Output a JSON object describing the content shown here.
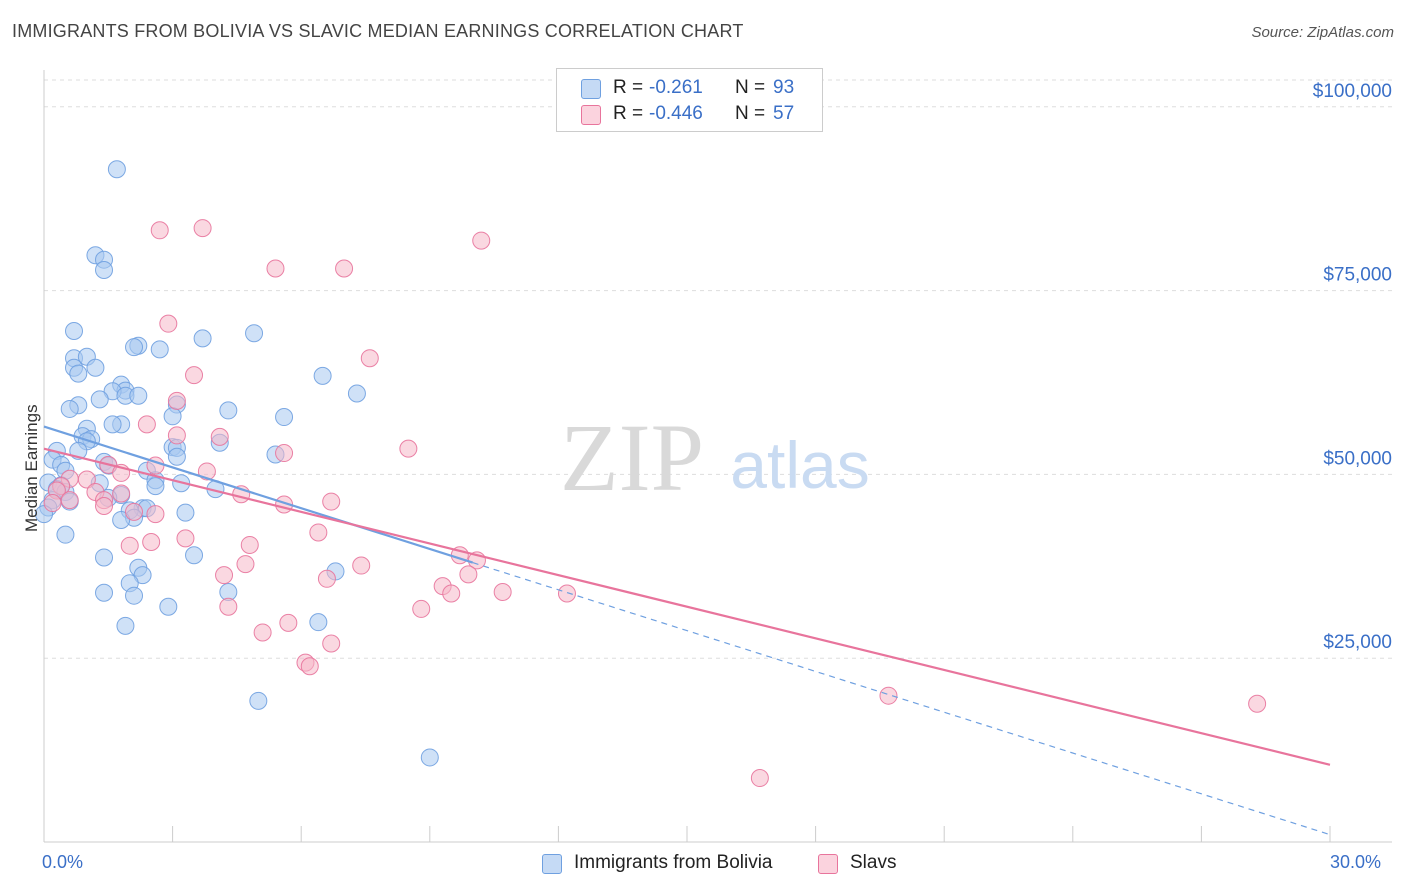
{
  "title": "IMMIGRANTS FROM BOLIVIA VS SLAVIC MEDIAN EARNINGS CORRELATION CHART",
  "source": "Source: ZipAtlas.com",
  "watermark": {
    "zip": "ZIP",
    "atlas": "atlas"
  },
  "legend_top": [
    {
      "r_label": "R =",
      "r_value": "-0.261",
      "n_label": "N =",
      "n_value": "93",
      "color": "#a8c8f0"
    },
    {
      "r_label": "R =",
      "r_value": "-0.446",
      "n_label": "N =",
      "n_value": "57",
      "color": "#f5b8c9"
    }
  ],
  "legend_bottom": [
    {
      "label": "Immigrants from Bolivia",
      "color": "#a8c8f0"
    },
    {
      "label": "Slavs",
      "color": "#f5b8c9"
    }
  ],
  "chart_data": {
    "type": "scatter",
    "title": "IMMIGRANTS FROM BOLIVIA VS SLAVIC MEDIAN EARNINGS CORRELATION CHART",
    "xlabel": "",
    "ylabel": "Median Earnings",
    "xlim": [
      0,
      30
    ],
    "ylim": [
      0,
      105000
    ],
    "x_tick_labels": [
      "0.0%",
      "30.0%"
    ],
    "y_ticks": [
      25000,
      50000,
      75000,
      100000
    ],
    "y_tick_labels": [
      "$25,000",
      "$50,000",
      "$75,000",
      "$100,000"
    ],
    "grid": true,
    "legend_position": "top-center",
    "series": [
      {
        "name": "Immigrants from Bolivia",
        "color": "#6fa0e0",
        "fill": "#a8c8f0",
        "trend": {
          "x": [
            0,
            10
          ],
          "y": [
            56500,
            38000
          ],
          "dashed_to": [
            30,
            1000
          ]
        },
        "points": [
          [
            1.7,
            91500
          ],
          [
            1.2,
            79800
          ],
          [
            1.4,
            79200
          ],
          [
            1.4,
            77800
          ],
          [
            0.7,
            69500
          ],
          [
            4.9,
            69200
          ],
          [
            3.7,
            68500
          ],
          [
            2.2,
            67500
          ],
          [
            2.1,
            67300
          ],
          [
            2.7,
            67000
          ],
          [
            0.7,
            65800
          ],
          [
            1.0,
            66000
          ],
          [
            0.7,
            64500
          ],
          [
            1.2,
            64500
          ],
          [
            0.8,
            63700
          ],
          [
            6.5,
            63400
          ],
          [
            1.8,
            62200
          ],
          [
            1.9,
            61400
          ],
          [
            1.6,
            61300
          ],
          [
            7.3,
            61000
          ],
          [
            1.9,
            60700
          ],
          [
            2.2,
            60700
          ],
          [
            1.3,
            60200
          ],
          [
            3.1,
            59500
          ],
          [
            0.8,
            59400
          ],
          [
            0.6,
            58900
          ],
          [
            4.3,
            58700
          ],
          [
            3.0,
            57900
          ],
          [
            5.6,
            57800
          ],
          [
            1.8,
            56800
          ],
          [
            1.6,
            56800
          ],
          [
            1.0,
            56200
          ],
          [
            0.9,
            55200
          ],
          [
            1.1,
            54800
          ],
          [
            1.0,
            54500
          ],
          [
            4.1,
            54300
          ],
          [
            3.0,
            53700
          ],
          [
            3.1,
            53600
          ],
          [
            0.8,
            53200
          ],
          [
            0.3,
            53200
          ],
          [
            5.4,
            52700
          ],
          [
            3.1,
            52400
          ],
          [
            0.2,
            52000
          ],
          [
            1.4,
            51700
          ],
          [
            1.5,
            51200
          ],
          [
            0.4,
            51300
          ],
          [
            0.5,
            50500
          ],
          [
            2.4,
            50500
          ],
          [
            2.6,
            49200
          ],
          [
            0.1,
            48900
          ],
          [
            1.3,
            48800
          ],
          [
            3.2,
            48800
          ],
          [
            0.4,
            48500
          ],
          [
            2.6,
            48400
          ],
          [
            0.3,
            48000
          ],
          [
            4.0,
            48000
          ],
          [
            0.5,
            47600
          ],
          [
            1.8,
            47200
          ],
          [
            1.5,
            46800
          ],
          [
            0.2,
            46500
          ],
          [
            0.6,
            46300
          ],
          [
            0.1,
            45500
          ],
          [
            2.3,
            45400
          ],
          [
            2.0,
            45100
          ],
          [
            2.4,
            45400
          ],
          [
            3.3,
            44800
          ],
          [
            0.0,
            44600
          ],
          [
            2.1,
            44100
          ],
          [
            1.8,
            43800
          ],
          [
            0.5,
            41800
          ],
          [
            1.4,
            38700
          ],
          [
            3.5,
            39000
          ],
          [
            2.2,
            37300
          ],
          [
            2.3,
            36300
          ],
          [
            6.8,
            36800
          ],
          [
            2.0,
            35200
          ],
          [
            4.3,
            34000
          ],
          [
            1.4,
            33900
          ],
          [
            2.1,
            33500
          ],
          [
            2.9,
            32000
          ],
          [
            6.4,
            29900
          ],
          [
            1.9,
            29400
          ],
          [
            5.0,
            19200
          ],
          [
            9.0,
            11500
          ]
        ]
      },
      {
        "name": "Slavs",
        "color": "#e8749c",
        "fill": "#f5b8c9",
        "trend": {
          "x": [
            0,
            30
          ],
          "y": [
            53500,
            10500
          ]
        },
        "points": [
          [
            3.7,
            83500
          ],
          [
            2.7,
            83200
          ],
          [
            10.2,
            81800
          ],
          [
            7.0,
            78000
          ],
          [
            5.4,
            78000
          ],
          [
            2.9,
            70500
          ],
          [
            7.6,
            65800
          ],
          [
            3.5,
            63500
          ],
          [
            3.1,
            60000
          ],
          [
            2.4,
            56800
          ],
          [
            3.1,
            55300
          ],
          [
            4.1,
            55100
          ],
          [
            8.5,
            53500
          ],
          [
            5.6,
            52900
          ],
          [
            2.6,
            51200
          ],
          [
            1.5,
            51300
          ],
          [
            3.8,
            50400
          ],
          [
            1.8,
            50200
          ],
          [
            0.6,
            49400
          ],
          [
            1.0,
            49300
          ],
          [
            0.4,
            48400
          ],
          [
            0.3,
            47800
          ],
          [
            1.2,
            47600
          ],
          [
            1.8,
            47400
          ],
          [
            4.6,
            47300
          ],
          [
            0.6,
            46500
          ],
          [
            1.4,
            46500
          ],
          [
            6.7,
            46300
          ],
          [
            0.2,
            46100
          ],
          [
            5.6,
            45900
          ],
          [
            1.4,
            45700
          ],
          [
            2.1,
            44900
          ],
          [
            2.6,
            44600
          ],
          [
            6.4,
            42100
          ],
          [
            3.3,
            41300
          ],
          [
            2.5,
            40800
          ],
          [
            2.0,
            40300
          ],
          [
            4.8,
            40400
          ],
          [
            9.7,
            39000
          ],
          [
            10.1,
            38300
          ],
          [
            4.7,
            37800
          ],
          [
            7.4,
            37600
          ],
          [
            4.2,
            36300
          ],
          [
            9.9,
            36400
          ],
          [
            6.6,
            35800
          ],
          [
            9.3,
            34800
          ],
          [
            9.5,
            33800
          ],
          [
            10.7,
            34000
          ],
          [
            12.2,
            33800
          ],
          [
            8.8,
            31700
          ],
          [
            4.3,
            32000
          ],
          [
            5.7,
            29800
          ],
          [
            5.1,
            28500
          ],
          [
            6.7,
            27000
          ],
          [
            6.1,
            24400
          ],
          [
            6.2,
            23900
          ],
          [
            19.7,
            19900
          ],
          [
            28.3,
            18800
          ],
          [
            16.7,
            8700
          ]
        ]
      }
    ]
  }
}
